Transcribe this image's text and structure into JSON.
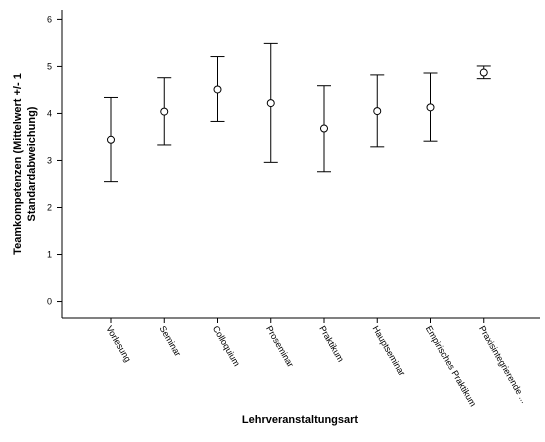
{
  "chart_data": {
    "type": "errorbar",
    "categories": [
      "Vorlesung",
      "Seminar",
      "Colloquium",
      "Proseminar",
      "Praktikum",
      "Hauptseminar",
      "Empirisches Praktikum",
      "Praxisintegrierende ..."
    ],
    "series": [
      {
        "means": [
          3.44,
          4.04,
          4.51,
          4.22,
          3.68,
          4.05,
          4.13,
          4.87
        ],
        "lower": [
          2.55,
          3.33,
          3.83,
          2.96,
          2.76,
          3.29,
          3.41,
          4.74
        ],
        "upper": [
          4.34,
          4.76,
          5.21,
          5.49,
          4.59,
          4.82,
          4.86,
          5.01
        ]
      }
    ],
    "xlabel": "Lehrveranstaltungsart",
    "ylabel": [
      "Teamkompetenzen (Mittelwert +/- 1",
      "Standardabweichung)"
    ],
    "yticks": [
      "0",
      "1",
      "2",
      "3",
      "4",
      "5",
      "6"
    ],
    "ylim": [
      -0.35,
      6.2
    ],
    "grid": false,
    "marker": "open-circle",
    "color": "#000000"
  }
}
